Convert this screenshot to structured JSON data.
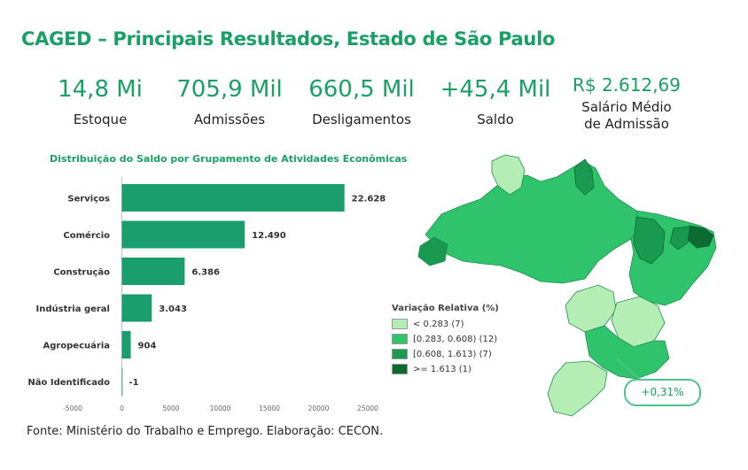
{
  "page": {
    "title": "CAGED – Principais Resultados, Estado de São Paulo",
    "source": "Fonte: Ministério do Trabalho e Emprego. Elaboração: CECON."
  },
  "kpis": [
    {
      "value": "14,8 Mi",
      "label": "Estoque"
    },
    {
      "value": "705,9 Mil",
      "label": "Admissões"
    },
    {
      "value": "660,5 Mil",
      "label": "Desligamentos"
    },
    {
      "value": "+45,4 Mil",
      "label": "Saldo"
    },
    {
      "value": "R$ 2.612,69",
      "label_line1": "Salário Médio",
      "label_line2": "de Admissão"
    }
  ],
  "chart_data": {
    "type": "bar",
    "orientation": "horizontal",
    "title": "Distribuição do Saldo por Grupamento de Atividades Econômicas",
    "categories": [
      "Serviços",
      "Comércio",
      "Construção",
      "Indústria geral",
      "Agropecuária",
      "Não Identificado"
    ],
    "values": [
      22628,
      12490,
      6386,
      3043,
      904,
      -1
    ],
    "value_labels": [
      "22.628",
      "12.490",
      "6.386",
      "3.043",
      "904",
      "-1"
    ],
    "xticks": [
      "-5000",
      "0",
      "5000",
      "10000",
      "15000",
      "20000",
      "25000"
    ],
    "xlim": [
      -5000,
      25000
    ],
    "bar_color": "#1b9e6e",
    "grid": false
  },
  "map": {
    "legend_title": "Variação Relativa (%)",
    "legend": [
      {
        "label": "< 0.283 (7)",
        "color": "#b4eeb4"
      },
      {
        "label": "[0.283, 0.608) (12)",
        "color": "#2fc46c"
      },
      {
        "label": "[0.608, 1.613) (7)",
        "color": "#1a9950"
      },
      {
        "label": ">= 1.613 (1)",
        "color": "#0b6b33"
      }
    ],
    "callout": "+0,31%",
    "callout_color": "#4ec48c"
  }
}
